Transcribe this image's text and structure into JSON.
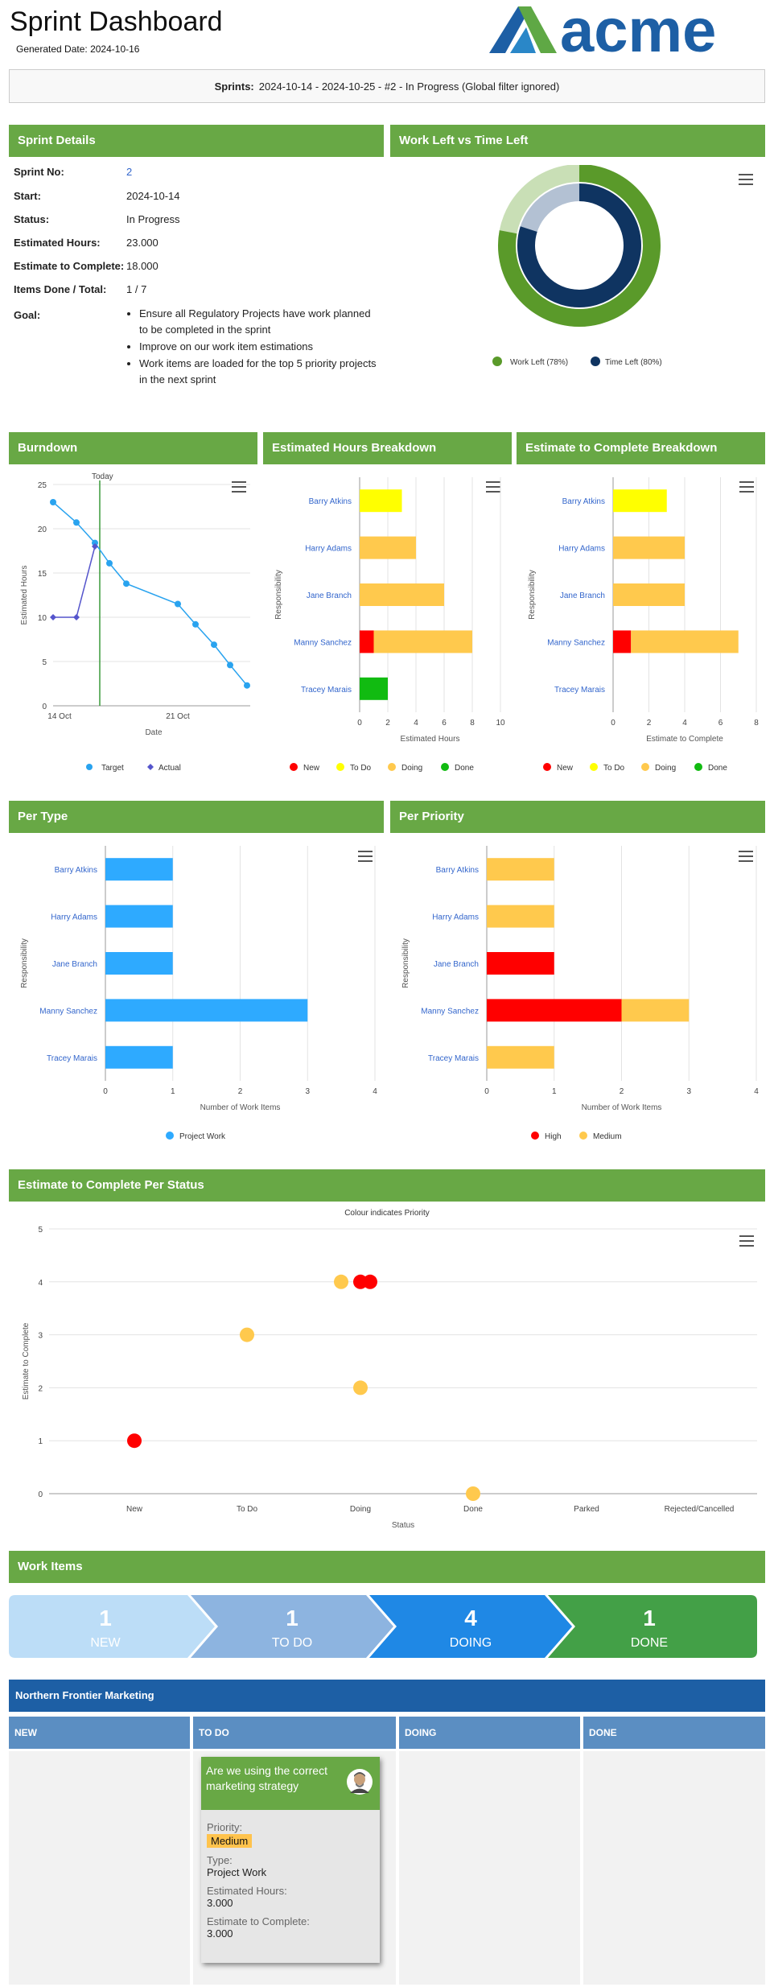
{
  "header": {
    "title": "Sprint Dashboard",
    "generated_label": "Generated Date:",
    "generated_value": "2024-10-16",
    "logo_text": "acme"
  },
  "filter": {
    "label": "Sprints:",
    "value": "2024-10-14 - 2024-10-25 - #2 - In Progress (Global filter ignored)"
  },
  "sprint_details": {
    "heading": "Sprint Details",
    "rows": [
      {
        "label": "Sprint No:",
        "value": "2"
      },
      {
        "label": "Start:",
        "value": "2024-10-14"
      },
      {
        "label": "Status:",
        "value": "In Progress"
      },
      {
        "label": "Estimated Hours:",
        "value": "23.000"
      },
      {
        "label": "Estimate to Complete:",
        "value": "18.000"
      },
      {
        "label": "Items Done / Total:",
        "value": "1 / 7"
      }
    ],
    "goal_label": "Goal:",
    "goals": [
      "Ensure all Regulatory Projects have work planned to be completed in the sprint",
      "Improve on our work item estimations",
      "Work items are loaded for the top 5 priority projects in the next sprint"
    ]
  },
  "work_left": {
    "heading": "Work Left vs Time Left",
    "legend": [
      "Work Left (78%)",
      "Time Left (80%)"
    ],
    "work_left_pct": 78,
    "time_left_pct": 80,
    "colors": {
      "work": "#5a9a2a",
      "work_bg": "#c9dfb6",
      "time": "#0f3461",
      "time_bg": "#b3c1d3"
    }
  },
  "burndown": {
    "heading": "Burndown",
    "today_label": "Today",
    "ylabel": "Estimated Hours",
    "xlabel": "Date",
    "yticks": [
      "0",
      "5",
      "10",
      "15",
      "20",
      "25"
    ],
    "xticks": [
      "14 Oct",
      "21 Oct"
    ],
    "legend": [
      "Target",
      "Actual"
    ]
  },
  "est_hours": {
    "heading": "Estimated Hours Breakdown",
    "ylabel": "Responsibility",
    "xlabel": "Estimated Hours",
    "xticks": [
      "0",
      "2",
      "4",
      "6",
      "8",
      "10"
    ],
    "legend": [
      "New",
      "To Do",
      "Doing",
      "Done"
    ]
  },
  "etc_breakdown": {
    "heading": "Estimate to Complete Breakdown",
    "ylabel": "Responsibility",
    "xlabel": "Estimate to Complete",
    "xticks": [
      "0",
      "2",
      "4",
      "6",
      "8"
    ],
    "legend": [
      "New",
      "To Do",
      "Doing",
      "Done"
    ]
  },
  "per_type": {
    "heading": "Per Type",
    "ylabel": "Responsibility",
    "xlabel": "Number of Work Items",
    "xticks": [
      "0",
      "1",
      "2",
      "3",
      "4"
    ],
    "legend": [
      "Project Work"
    ]
  },
  "per_priority": {
    "heading": "Per Priority",
    "ylabel": "Responsibility",
    "xlabel": "Number of Work Items",
    "xticks": [
      "0",
      "1",
      "2",
      "3",
      "4"
    ],
    "legend": [
      "High",
      "Medium"
    ]
  },
  "etc_status": {
    "heading": "Estimate to Complete Per Status",
    "subtitle": "Colour indicates Priority",
    "ylabel": "Estimate to Complete",
    "xlabel": "Status",
    "yticks": [
      "0",
      "1",
      "2",
      "3",
      "4",
      "5"
    ]
  },
  "colors": {
    "new": "#ff0000",
    "todo": "#ffff00",
    "doing": "#ffc94d",
    "done": "#11bb11",
    "blue": "#2eaaff",
    "high": "#ff0000",
    "medium": "#ffc94d",
    "target": "#29a3ef",
    "actual": "#5555cc",
    "today": "#3a9a3a"
  },
  "chart_data": [
    {
      "type": "line",
      "title": "Burndown",
      "xlabel": "Date",
      "ylabel": "Estimated Hours",
      "ylim": [
        0,
        25
      ],
      "x": [
        "2024-10-14",
        "2024-10-15",
        "2024-10-16",
        "2024-10-17",
        "2024-10-18",
        "2024-10-21",
        "2024-10-22",
        "2024-10-23",
        "2024-10-24",
        "2024-10-25"
      ],
      "series": [
        {
          "name": "Target",
          "values": [
            23,
            20.7,
            18.4,
            16.1,
            13.8,
            11.5,
            9.2,
            6.9,
            4.6,
            2.3
          ]
        },
        {
          "name": "Actual",
          "values": [
            10,
            10,
            18,
            null,
            null,
            null,
            null,
            null,
            null,
            null
          ]
        }
      ]
    },
    {
      "type": "bar",
      "title": "Estimated Hours Breakdown",
      "xlabel": "Estimated Hours",
      "ylabel": "Responsibility",
      "categories": [
        "Barry Atkins",
        "Harry Adams",
        "Jane Branch",
        "Manny Sanchez",
        "Tracey Marais"
      ],
      "xlim": [
        0,
        10
      ],
      "series": [
        {
          "name": "New",
          "values": [
            0,
            0,
            0,
            1,
            0
          ]
        },
        {
          "name": "To Do",
          "values": [
            3,
            0,
            0,
            0,
            0
          ]
        },
        {
          "name": "Doing",
          "values": [
            0,
            4,
            6,
            7,
            0
          ]
        },
        {
          "name": "Done",
          "values": [
            0,
            0,
            0,
            0,
            2
          ]
        }
      ]
    },
    {
      "type": "bar",
      "title": "Estimate to Complete Breakdown",
      "xlabel": "Estimate to Complete",
      "ylabel": "Responsibility",
      "categories": [
        "Barry Atkins",
        "Harry Adams",
        "Jane Branch",
        "Manny Sanchez",
        "Tracey Marais"
      ],
      "xlim": [
        0,
        8
      ],
      "series": [
        {
          "name": "New",
          "values": [
            0,
            0,
            0,
            1,
            0
          ]
        },
        {
          "name": "To Do",
          "values": [
            3,
            0,
            0,
            0,
            0
          ]
        },
        {
          "name": "Doing",
          "values": [
            0,
            4,
            4,
            6,
            0
          ]
        },
        {
          "name": "Done",
          "values": [
            0,
            0,
            0,
            0,
            0
          ]
        }
      ]
    },
    {
      "type": "bar",
      "title": "Per Type",
      "xlabel": "Number of Work Items",
      "ylabel": "Responsibility",
      "categories": [
        "Barry Atkins",
        "Harry Adams",
        "Jane Branch",
        "Manny Sanchez",
        "Tracey Marais"
      ],
      "xlim": [
        0,
        4
      ],
      "series": [
        {
          "name": "Project Work",
          "values": [
            1,
            1,
            1,
            3,
            1
          ]
        }
      ]
    },
    {
      "type": "bar",
      "title": "Per Priority",
      "xlabel": "Number of Work Items",
      "ylabel": "Responsibility",
      "categories": [
        "Barry Atkins",
        "Harry Adams",
        "Jane Branch",
        "Manny Sanchez",
        "Tracey Marais"
      ],
      "xlim": [
        0,
        4
      ],
      "series": [
        {
          "name": "High",
          "values": [
            0,
            0,
            1,
            2,
            0
          ]
        },
        {
          "name": "Medium",
          "values": [
            1,
            1,
            0,
            1,
            1
          ]
        }
      ]
    },
    {
      "type": "scatter",
      "title": "Estimate to Complete Per Status",
      "subtitle": "Colour indicates Priority",
      "xlabel": "Status",
      "ylabel": "Estimate to Complete",
      "categories": [
        "New",
        "To Do",
        "Doing",
        "Done",
        "Parked",
        "Rejected/Cancelled"
      ],
      "ylim": [
        0,
        5
      ],
      "points": [
        {
          "x": "New",
          "y": 1,
          "priority": "High"
        },
        {
          "x": "To Do",
          "y": 3,
          "priority": "Medium"
        },
        {
          "x": "Doing",
          "y": 4,
          "priority": "Medium"
        },
        {
          "x": "Doing",
          "y": 4,
          "priority": "High"
        },
        {
          "x": "Doing",
          "y": 4,
          "priority": "High"
        },
        {
          "x": "Doing",
          "y": 2,
          "priority": "Medium"
        },
        {
          "x": "Done",
          "y": 0,
          "priority": "Medium"
        }
      ]
    },
    {
      "type": "pie",
      "title": "Work Left vs Time Left",
      "series": [
        {
          "name": "Work Left (78%)",
          "values": [
            78
          ]
        },
        {
          "name": "Time Left (80%)",
          "values": [
            80
          ]
        }
      ]
    }
  ],
  "work_items": {
    "heading": "Work Items",
    "stages": [
      {
        "count": "1",
        "label": "NEW",
        "color": "#bcddf7"
      },
      {
        "count": "1",
        "label": "TO DO",
        "color": "#8db4e0"
      },
      {
        "count": "4",
        "label": "DOING",
        "color": "#1f88e5"
      },
      {
        "count": "1",
        "label": "DONE",
        "color": "#43a047"
      }
    ]
  },
  "kanban": {
    "group": "Northern Frontier Marketing",
    "columns": [
      "NEW",
      "TO DO",
      "DOING",
      "DONE"
    ],
    "card": {
      "title": "Are we using the correct marketing strategy",
      "priority_label": "Priority:",
      "priority": "Medium",
      "type_label": "Type:",
      "type": "Project Work",
      "est_label": "Estimated Hours:",
      "est": "3.000",
      "etc_label": "Estimate to Complete:",
      "etc": "3.000"
    }
  }
}
